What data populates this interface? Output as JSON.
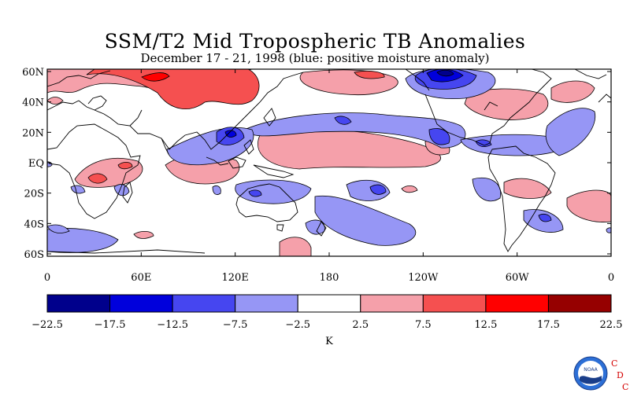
{
  "title": "SSM/T2 Mid Tropospheric TB Anomalies",
  "subtitle": "December 17 - 21, 1998 (blue: positive moisture anomaly)",
  "map": {
    "lat_labels": [
      "60N",
      "40N",
      "20N",
      "EQ",
      "20S",
      "40S",
      "60S"
    ],
    "lon_labels": [
      "0",
      "60E",
      "120E",
      "180",
      "120W",
      "60W",
      "0"
    ]
  },
  "colorbar": {
    "unit_label": "K",
    "ticks": [
      "-22.5",
      "-17.5",
      "-12.5",
      "-7.5",
      "-2.5",
      "2.5",
      "7.5",
      "12.5",
      "17.5",
      "22.5"
    ],
    "colors": [
      "#00008c",
      "#0000dc",
      "#4646f0",
      "#9696f5",
      "#ffffff",
      "#f5a0aa",
      "#f55050",
      "#ff0000",
      "#960000"
    ]
  },
  "logo": {
    "text": "NOAA",
    "letters": [
      "C",
      "D",
      "C"
    ]
  }
}
